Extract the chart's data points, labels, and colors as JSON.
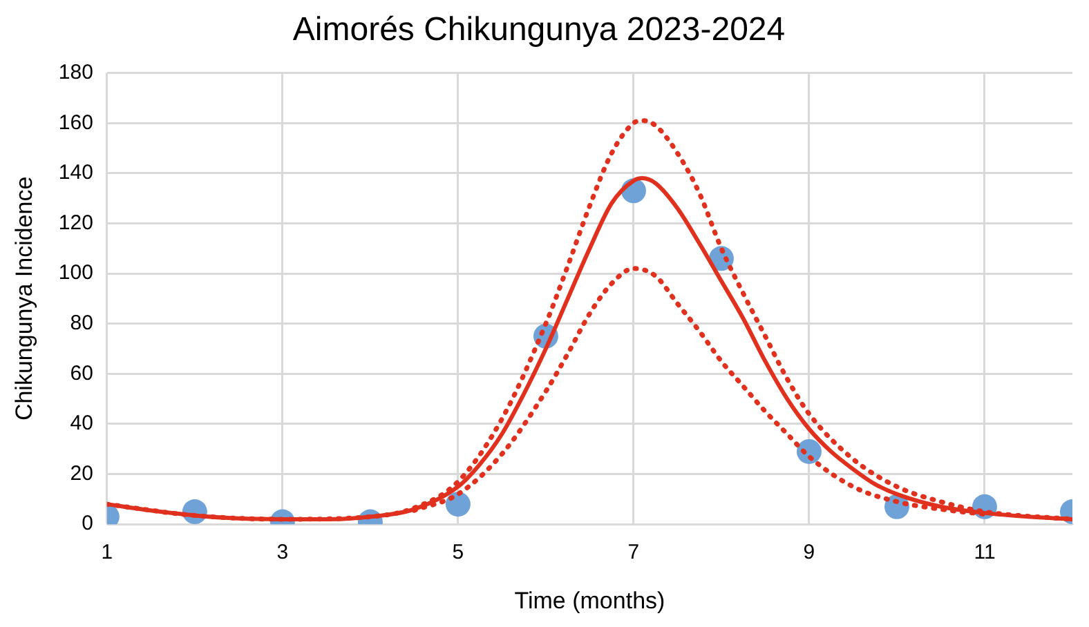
{
  "chart_data": {
    "type": "scatter",
    "title": "Aimorés Chikungunya 2023-2024",
    "xlabel": "Time (months)",
    "ylabel": "Chikungunya Incidence",
    "xlim": [
      1,
      12
    ],
    "xticks": [
      1,
      3,
      5,
      7,
      9,
      11
    ],
    "ylim": [
      0,
      180
    ],
    "yticks": [
      0,
      20,
      40,
      60,
      80,
      100,
      120,
      140,
      160,
      180
    ],
    "grid": true,
    "legend": false,
    "series": [
      {
        "type": "line",
        "color": "#e0301e",
        "line_style": "dotted",
        "marker": "none",
        "x": [
          1,
          2,
          3,
          4,
          4.5,
          5,
          5.5,
          6,
          6.25,
          6.5,
          6.75,
          7,
          7.1,
          7.25,
          7.5,
          7.75,
          8,
          8.25,
          8.5,
          8.75,
          9,
          9.5,
          10,
          10.5,
          11,
          12
        ],
        "values": [
          8,
          3.5,
          2,
          3,
          6.5,
          17,
          42,
          80,
          103,
          127,
          148,
          160,
          161,
          159,
          148,
          132,
          110,
          92,
          75,
          58,
          44,
          26,
          15,
          9,
          5,
          2
        ]
      },
      {
        "type": "line",
        "color": "#e0301e",
        "line_style": "dotted",
        "marker": "none",
        "x": [
          4.5,
          5,
          5.5,
          6,
          6.25,
          6.5,
          6.75,
          7,
          7.25,
          7.5,
          7.75,
          8,
          8.25,
          8.5,
          8.75,
          9,
          9.5,
          10,
          10.5,
          11
        ],
        "values": [
          5.5,
          12,
          28,
          53,
          68,
          84,
          96,
          102,
          99,
          88,
          77,
          65,
          55,
          45,
          36,
          27,
          15,
          9,
          6,
          4
        ]
      },
      {
        "type": "line",
        "color": "#e0301e",
        "line_style": "solid",
        "marker": "none",
        "x": [
          1,
          1.5,
          2,
          2.5,
          3,
          3.5,
          4,
          4.5,
          5,
          5.25,
          5.5,
          5.75,
          6,
          6.25,
          6.5,
          6.75,
          7,
          7.1,
          7.25,
          7.5,
          7.75,
          8,
          8.25,
          8.5,
          8.75,
          9,
          9.25,
          9.5,
          9.75,
          10,
          10.5,
          11,
          11.5,
          12
        ],
        "values": [
          8,
          5.5,
          3.5,
          2.3,
          2,
          2,
          3,
          6,
          15,
          24,
          36,
          52,
          70,
          90,
          110,
          128,
          137,
          138,
          136,
          126,
          112,
          97,
          82,
          65,
          50,
          38,
          29,
          22,
          16,
          12,
          7,
          4.5,
          3,
          2
        ]
      },
      {
        "color": "#6fa3d8",
        "marker": "circle",
        "x": [
          1,
          2,
          3,
          4,
          5,
          6,
          7,
          8,
          9,
          10,
          11,
          12
        ],
        "values": [
          3,
          5,
          1,
          1,
          8,
          75,
          133,
          106,
          29,
          7,
          7,
          5
        ]
      }
    ]
  }
}
